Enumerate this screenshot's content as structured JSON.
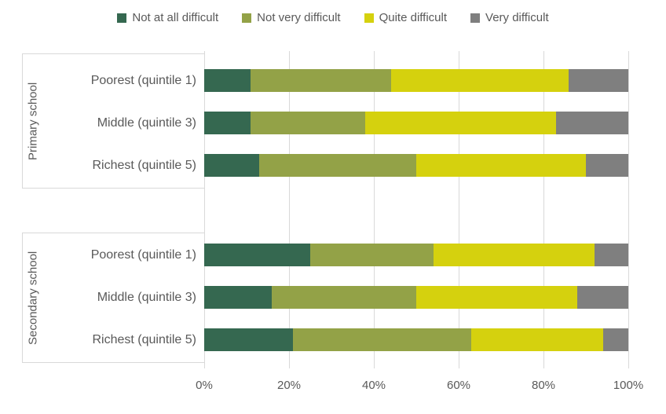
{
  "legend": {
    "items": [
      {
        "label": "Not at all difficult"
      },
      {
        "label": "Not very difficult"
      },
      {
        "label": "Quite difficult"
      },
      {
        "label": "Very difficult"
      }
    ]
  },
  "colors": {
    "not_at_all_difficult": "#356850",
    "not_very_difficult": "#93A247",
    "quite_difficult": "#D5D10E",
    "very_difficult": "#7F7F7F",
    "gridline": "#D9D9D9",
    "text": "#595959"
  },
  "chart_data": {
    "type": "bar",
    "orientation": "horizontal",
    "stacked": true,
    "units": "percent",
    "xlim": [
      0,
      100
    ],
    "x_ticks": [
      "0%",
      "20%",
      "40%",
      "60%",
      "80%",
      "100%"
    ],
    "grid": true,
    "legend_position": "top",
    "series": [
      "Not at all difficult",
      "Not very difficult",
      "Quite difficult",
      "Very difficult"
    ],
    "series_colors": [
      "#356850",
      "#93A247",
      "#D5D10E",
      "#7F7F7F"
    ],
    "groups": [
      {
        "label": "Primary school",
        "rows": [
          {
            "label": "Poorest (quintile 1)",
            "values": [
              11,
              33,
              42,
              14
            ]
          },
          {
            "label": "Middle (quintile 3)",
            "values": [
              11,
              27,
              45,
              17
            ]
          },
          {
            "label": "Richest (quintile 5)",
            "values": [
              13,
              37,
              40,
              10
            ]
          }
        ]
      },
      {
        "label": "Secondary school",
        "rows": [
          {
            "label": "Poorest (quintile 1)",
            "values": [
              25,
              29,
              38,
              8
            ]
          },
          {
            "label": "Middle (quintile 3)",
            "values": [
              16,
              34,
              38,
              12
            ]
          },
          {
            "label": "Richest (quintile 5)",
            "values": [
              21,
              42,
              31,
              6
            ]
          }
        ]
      }
    ]
  }
}
